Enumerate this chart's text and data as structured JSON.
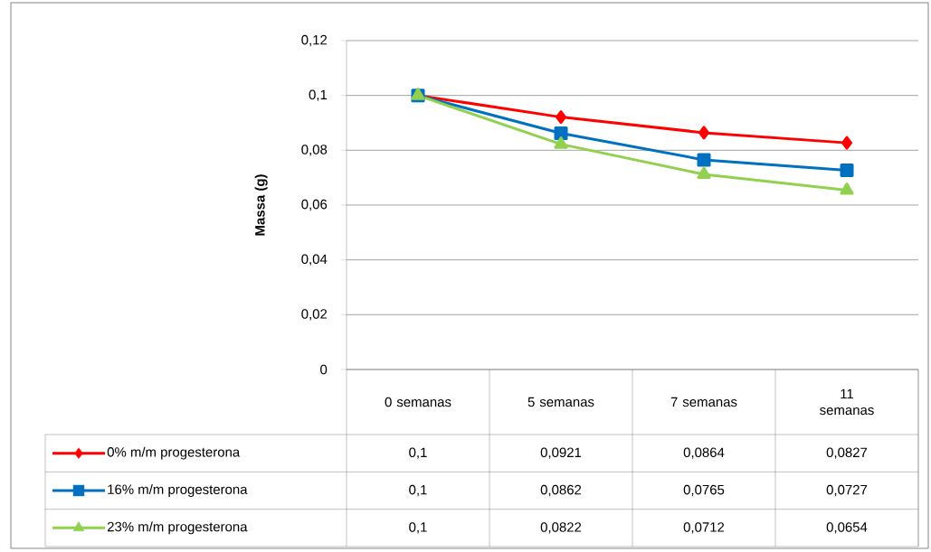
{
  "chart_data": {
    "type": "line",
    "ylabel": "Massa (g)",
    "categories": [
      "0 semanas",
      "5 semanas",
      "7 semanas",
      "11 semanas"
    ],
    "series": [
      {
        "name": "0% m/m progesterona",
        "color": "#ff0000",
        "marker": "diamond",
        "values": [
          0.1,
          0.0921,
          0.0864,
          0.0827
        ],
        "value_labels": [
          "0,1",
          "0,0921",
          "0,0864",
          "0,0827"
        ]
      },
      {
        "name": "16% m/m progesterona",
        "color": "#0070c0",
        "marker": "square",
        "values": [
          0.1,
          0.0862,
          0.0765,
          0.0727
        ],
        "value_labels": [
          "0,1",
          "0,0862",
          "0,0765",
          "0,0727"
        ]
      },
      {
        "name": "23% m/m progesterona",
        "color": "#92d050",
        "marker": "triangle",
        "values": [
          0.1,
          0.0822,
          0.0712,
          0.0654
        ],
        "value_labels": [
          "0,1",
          "0,0822",
          "0,0712",
          "0,0654"
        ]
      }
    ],
    "ylim": [
      0,
      0.12
    ],
    "yticks": [
      {
        "value": 0,
        "label": "0"
      },
      {
        "value": 0.02,
        "label": "0,02"
      },
      {
        "value": 0.04,
        "label": "0,04"
      },
      {
        "value": 0.06,
        "label": "0,06"
      },
      {
        "value": 0.08,
        "label": "0,08"
      },
      {
        "value": 0.1,
        "label": "0,1"
      },
      {
        "value": 0.12,
        "label": "0,12"
      }
    ],
    "grid": "y",
    "legend": "bottom left",
    "line_style": "solid"
  }
}
